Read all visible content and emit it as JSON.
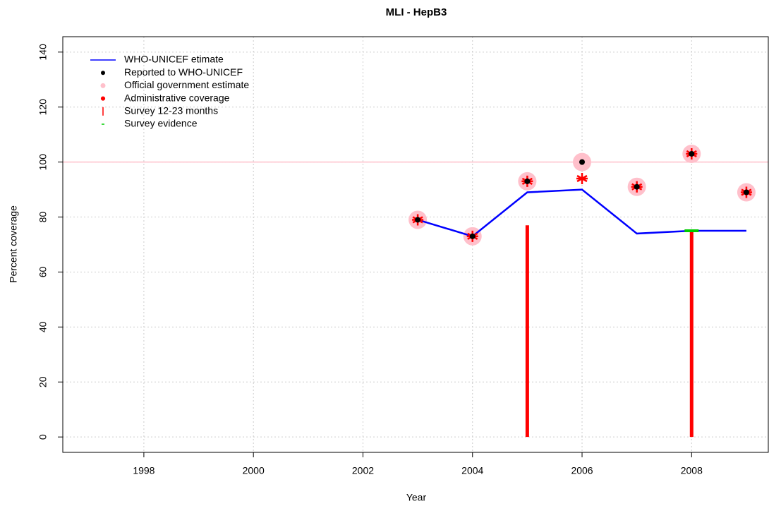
{
  "chart_data": {
    "type": "line",
    "title": "MLI  -  HepB3",
    "x_label": "Year",
    "y_label": "Percent coverage",
    "x": [
      2003,
      2004,
      2005,
      2006,
      2007,
      2008,
      2009
    ],
    "series": [
      {
        "name": "WHO-UNICEF etimate",
        "color": "#0000ff",
        "style": "line",
        "values": [
          79,
          73,
          89,
          90,
          74,
          75,
          75
        ]
      },
      {
        "name": "Reported to WHO-UNICEF",
        "color": "#000000",
        "style": "dot",
        "values": [
          79,
          73,
          93,
          100,
          91,
          103,
          89
        ]
      },
      {
        "name": "Official government estimate",
        "color": "#ffc0cb",
        "style": "circle",
        "values": [
          79,
          73,
          93,
          100,
          91,
          103,
          89
        ]
      },
      {
        "name": "Administrative coverage",
        "color": "#ff0000",
        "style": "star",
        "values": [
          79,
          73,
          93,
          94,
          91,
          103,
          89
        ]
      },
      {
        "name": "Survey 12-23 months",
        "color": "#ff0000",
        "style": "bar",
        "values": [
          null,
          null,
          77,
          null,
          null,
          75,
          null
        ]
      },
      {
        "name": "Survey evidence",
        "color": "#00cc00",
        "style": "dash",
        "values": [
          null,
          null,
          null,
          null,
          null,
          75,
          null
        ]
      }
    ],
    "hline": 100,
    "hline_color": "#ffc0cb",
    "xlim": [
      1996.52,
      2009.4
    ],
    "xticks": [
      1998,
      2000,
      2002,
      2004,
      2006,
      2008
    ],
    "ylim": [
      -5.6,
      145.6
    ],
    "yticks": [
      0,
      20,
      40,
      60,
      80,
      100,
      120,
      140
    ],
    "grid": true,
    "legend": "top-left"
  }
}
